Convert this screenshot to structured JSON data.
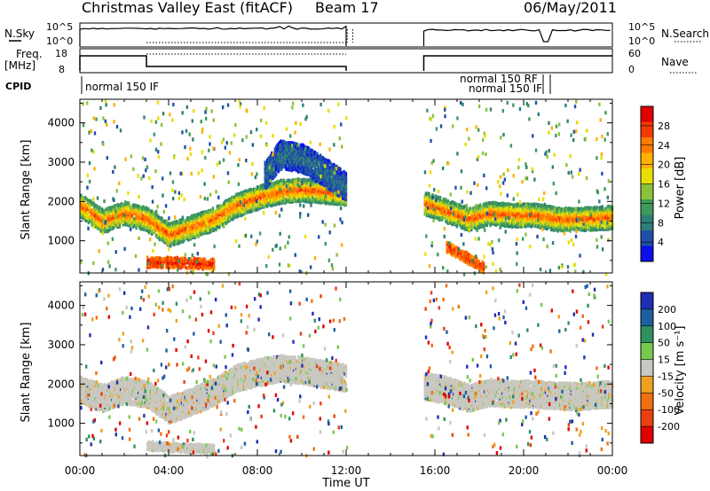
{
  "header": {
    "station": "Christmas Valley East (fitACF)",
    "beam": "Beam 17",
    "date": "06/May/2011"
  },
  "param_panels": {
    "nsky_label": "N.Sky",
    "nsky_ticks": [
      "10^5",
      "10^0"
    ],
    "nsearch_label": "N.Search",
    "nsearch_ticks": [
      "10^5",
      "10^0"
    ],
    "freq_label": "Freq.",
    "freq_unit": "[MHz]",
    "freq_ticks": [
      "18",
      "8"
    ],
    "nave_label": "Nave",
    "nave_ticks": [
      "60",
      "0"
    ],
    "cpid_label": "CPID",
    "cpid_entries": [
      "normal 150 IF",
      "normal 150 RF",
      "normal 150 IF"
    ]
  },
  "colorbars": {
    "power": {
      "title": "Power [dB]",
      "ticks": [
        "28",
        "24",
        "20",
        "16",
        "12",
        "8",
        "4"
      ],
      "colors": [
        "#e10000",
        "#f23a00",
        "#ff7a00",
        "#ffb000",
        "#e8de00",
        "#8ac33b",
        "#3f9a5a",
        "#2f7f77",
        "#1f4fa8",
        "#0b10e6"
      ]
    },
    "velocity": {
      "title": "Velocity [m s⁻¹]",
      "ticks": [
        "200",
        "100",
        "50",
        "15",
        "-15",
        "-50",
        "-100",
        "-200"
      ],
      "colors": [
        "#1e2fb0",
        "#1e5fa0",
        "#2e8f5f",
        "#78c850",
        "#c8c8c0",
        "#f0a020",
        "#f07010",
        "#e84010",
        "#e00000"
      ]
    }
  },
  "chart_data": [
    {
      "type": "heatmap",
      "name": "power-panel",
      "ylabel": "Slant Range [km]",
      "ylim": [
        180,
        4600
      ],
      "y_ticks": [
        "1000",
        "2000",
        "3000",
        "4000"
      ],
      "x_ticks": [
        "00:00",
        "04:00",
        "08:00",
        "12:00",
        "16:00",
        "20:00",
        "00:00"
      ],
      "xlim_hours": [
        0,
        24
      ],
      "data_gap_hours": [
        12,
        15.5
      ],
      "bands": [
        {
          "x": [
            0,
            1,
            2,
            3,
            4,
            5,
            6,
            7,
            8,
            9,
            10,
            11,
            12
          ],
          "y": [
            1950,
            1550,
            1750,
            1600,
            1200,
            1400,
            1600,
            1950,
            2150,
            2300,
            2350,
            2300,
            2250
          ],
          "power_db": 26
        },
        {
          "x": [
            15.5,
            16.5,
            17.5,
            18.5,
            19.5,
            20.5,
            21.5,
            22.5,
            24
          ],
          "y": [
            2000,
            1800,
            1600,
            1750,
            1700,
            1700,
            1600,
            1600,
            1650
          ],
          "power_db": 26
        },
        {
          "x": [
            8.3,
            9,
            10,
            11,
            12
          ],
          "y": [
            2700,
            3250,
            3150,
            2800,
            2400
          ],
          "power_db": 6
        },
        {
          "x": [
            3,
            4,
            5,
            6
          ],
          "y": [
            500,
            500,
            480,
            450
          ],
          "power_db": 28
        },
        {
          "x": [
            16.5,
            17.3,
            18.2
          ],
          "y": [
            900,
            650,
            350
          ],
          "power_db": 27
        }
      ]
    },
    {
      "type": "heatmap",
      "name": "velocity-panel",
      "ylabel": "Slant Range [km]",
      "xlabel": "Time UT",
      "ylim": [
        180,
        4600
      ],
      "y_ticks": [
        "1000",
        "2000",
        "3000",
        "4000"
      ],
      "x_ticks": [
        "00:00",
        "04:00",
        "08:00",
        "12:00",
        "16:00",
        "20:00",
        "00:00"
      ],
      "xlim_hours": [
        0,
        24
      ],
      "data_gap_hours": [
        12,
        15.5
      ],
      "bands": [
        {
          "x": [
            0,
            1,
            2,
            3,
            4,
            5,
            6,
            7,
            8,
            9,
            10,
            11,
            12
          ],
          "y": [
            1900,
            1700,
            1900,
            1800,
            1400,
            1600,
            1850,
            2200,
            2350,
            2450,
            2400,
            2300,
            2200
          ],
          "velocity_ms": 0
        },
        {
          "x": [
            15.5,
            16.5,
            17.5,
            18.5,
            19.5,
            20.5,
            21.5,
            22.5,
            24
          ],
          "y": [
            2000,
            1900,
            1700,
            1850,
            1800,
            1800,
            1750,
            1750,
            1800
          ],
          "velocity_ms": 0
        },
        {
          "x": [
            3,
            4,
            5,
            6
          ],
          "y": [
            500,
            450,
            430,
            400
          ],
          "velocity_ms": 0
        }
      ]
    }
  ]
}
